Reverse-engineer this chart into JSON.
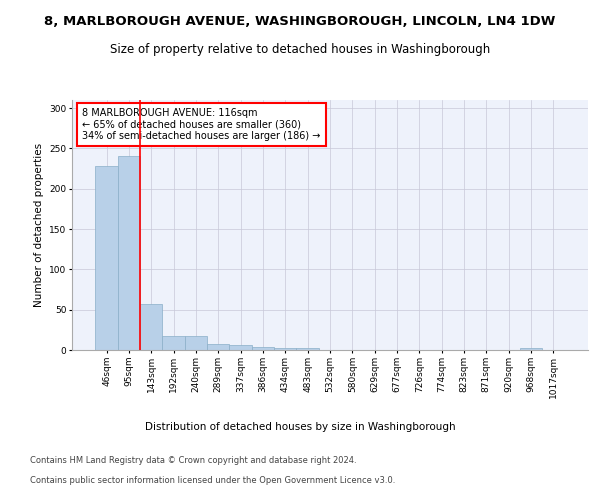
{
  "title": "8, MARLBOROUGH AVENUE, WASHINGBOROUGH, LINCOLN, LN4 1DW",
  "subtitle": "Size of property relative to detached houses in Washingborough",
  "xlabel": "Distribution of detached houses by size in Washingborough",
  "ylabel": "Number of detached properties",
  "bar_color": "#b8d0e8",
  "bar_edge_color": "#8aafc8",
  "background_color": "#eef2fb",
  "grid_color": "#c8c8d8",
  "categories": [
    "46sqm",
    "95sqm",
    "143sqm",
    "192sqm",
    "240sqm",
    "289sqm",
    "337sqm",
    "386sqm",
    "434sqm",
    "483sqm",
    "532sqm",
    "580sqm",
    "629sqm",
    "677sqm",
    "726sqm",
    "774sqm",
    "823sqm",
    "871sqm",
    "920sqm",
    "968sqm",
    "1017sqm"
  ],
  "values": [
    228,
    240,
    57,
    17,
    17,
    7,
    6,
    4,
    3,
    3,
    0,
    0,
    0,
    0,
    0,
    0,
    0,
    0,
    0,
    3,
    0
  ],
  "ylim": [
    0,
    310
  ],
  "yticks": [
    0,
    50,
    100,
    150,
    200,
    250,
    300
  ],
  "property_line_x": 1.48,
  "annotation_text": "8 MARLBOROUGH AVENUE: 116sqm\n← 65% of detached houses are smaller (360)\n34% of semi-detached houses are larger (186) →",
  "footer_line1": "Contains HM Land Registry data © Crown copyright and database right 2024.",
  "footer_line2": "Contains public sector information licensed under the Open Government Licence v3.0.",
  "title_fontsize": 9.5,
  "subtitle_fontsize": 8.5,
  "annotation_fontsize": 7,
  "axis_label_fontsize": 7.5,
  "tick_fontsize": 6.5,
  "footer_fontsize": 6.0
}
